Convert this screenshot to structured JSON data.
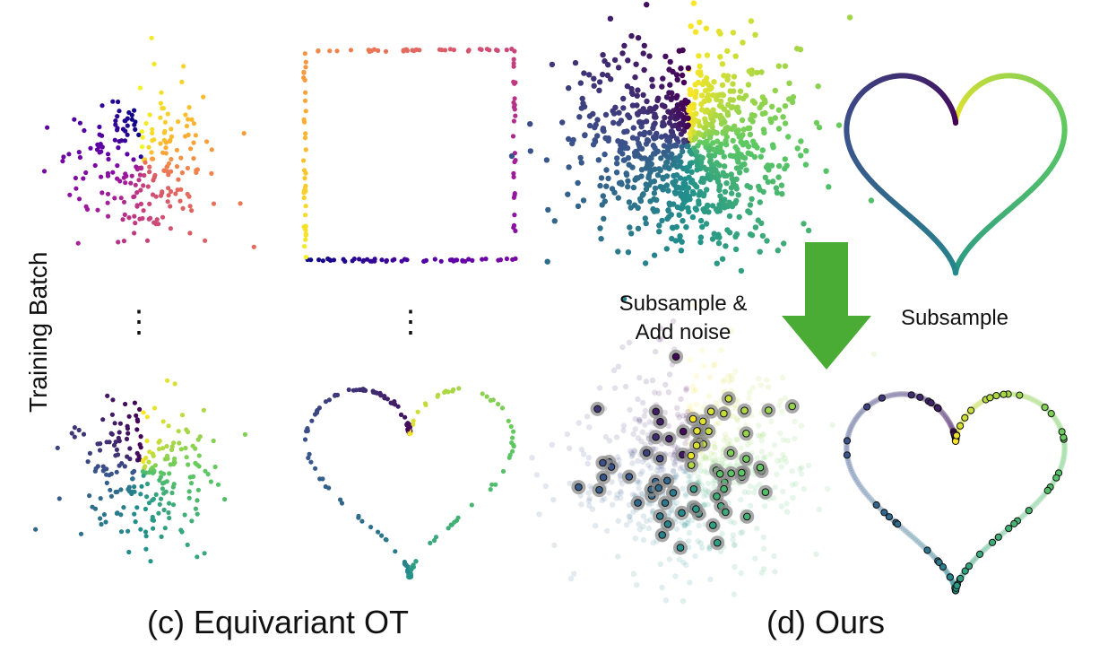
{
  "labels": {
    "row_label": "Training Batch",
    "caption_c": "(c) Equivariant OT",
    "caption_d": "(d) Ours",
    "subsample_noise_line1": "Subsample &",
    "subsample_noise_line2": "Add noise",
    "subsample": "Subsample",
    "ellipsis": "⋮"
  },
  "colors": {
    "plasma": [
      "#0d0887",
      "#5c01a6",
      "#9c179e",
      "#cc4778",
      "#ed7953",
      "#fdb42f",
      "#f0f921"
    ],
    "viridis": [
      "#440154",
      "#3b528b",
      "#21918c",
      "#5ec962",
      "#fde725"
    ],
    "arrow": "#4aab35",
    "highlight_halo": "#8c8c8c"
  },
  "icons": {
    "arrow": "down-arrow-icon"
  }
}
